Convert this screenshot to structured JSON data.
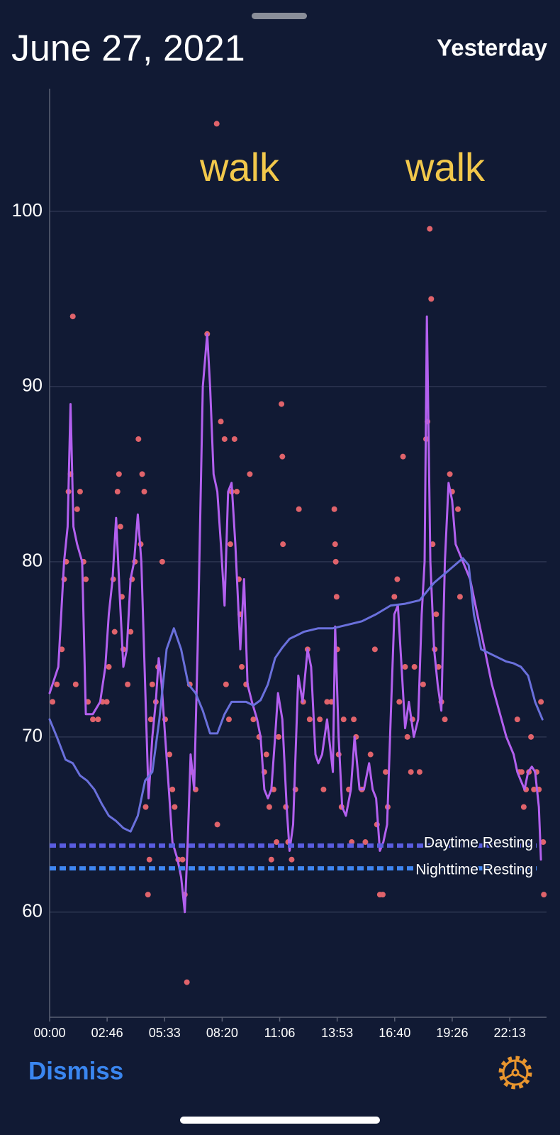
{
  "header": {
    "title": "June 27, 2021",
    "action": "Yesterday"
  },
  "footer": {
    "dismiss": "Dismiss"
  },
  "chart_data": {
    "type": "line",
    "xlim": [
      0,
      24
    ],
    "ylim": [
      54,
      107
    ],
    "xticks": [
      {
        "value": 0,
        "label": "00:00"
      },
      {
        "value": 2.7778,
        "label": "02:46"
      },
      {
        "value": 5.5556,
        "label": "05:33"
      },
      {
        "value": 8.3333,
        "label": "08:20"
      },
      {
        "value": 11.1111,
        "label": "11:06"
      },
      {
        "value": 13.8889,
        "label": "13:53"
      },
      {
        "value": 16.6667,
        "label": "16:40"
      },
      {
        "value": 19.4444,
        "label": "19:26"
      },
      {
        "value": 22.2222,
        "label": "22:13"
      }
    ],
    "yticks": [
      60,
      70,
      80,
      90,
      100
    ],
    "grid": true,
    "annotations": [
      "walk",
      "walk"
    ],
    "reference_lines": [
      {
        "name": "Daytime Resting",
        "value": 63.8,
        "color": "#5a5de0"
      },
      {
        "name": "Nighttime Resting",
        "value": 62.5,
        "color": "#3f86f2"
      }
    ],
    "series": [
      {
        "type": "scatter",
        "color": "#e0636b",
        "x": [
          0.14,
          0.35,
          0.59,
          0.7,
          0.8,
          0.91,
          1.01,
          1.12,
          1.26,
          1.33,
          1.47,
          1.64,
          1.75,
          1.85,
          2.09,
          2.34,
          2.55,
          2.76,
          2.86,
          3.07,
          3.14,
          3.28,
          3.35,
          3.42,
          3.49,
          3.56,
          3.77,
          3.91,
          3.98,
          4.12,
          4.29,
          4.4,
          4.47,
          4.57,
          4.64,
          4.75,
          4.82,
          4.89,
          4.96,
          5.13,
          5.24,
          5.44,
          5.58,
          5.79,
          5.93,
          6.04,
          6.21,
          6.42,
          6.53,
          6.63,
          6.77,
          6.88,
          7.05,
          7.61,
          8.07,
          8.1,
          8.27,
          8.45,
          8.52,
          8.66,
          8.73,
          8.79,
          8.93,
          9.04,
          9.14,
          9.21,
          9.28,
          9.49,
          9.67,
          9.84,
          10.12,
          10.37,
          10.47,
          10.61,
          10.71,
          10.82,
          10.96,
          11.06,
          11.2,
          11.24,
          11.27,
          11.41,
          11.52,
          11.69,
          11.87,
          12.04,
          12.25,
          12.46,
          12.56,
          13.05,
          13.23,
          13.4,
          13.61,
          13.75,
          13.79,
          13.82,
          13.86,
          13.89,
          13.96,
          14.1,
          14.2,
          14.45,
          14.59,
          14.69,
          14.8,
          15.08,
          15.25,
          15.5,
          15.71,
          15.81,
          15.95,
          16.09,
          16.23,
          16.33,
          16.65,
          16.79,
          16.89,
          17.07,
          17.17,
          17.28,
          17.45,
          17.52,
          17.62,
          17.87,
          18.04,
          18.18,
          18.25,
          18.36,
          18.43,
          18.5,
          18.6,
          18.67,
          18.78,
          18.92,
          19.09,
          19.33,
          19.44,
          19.72,
          19.82,
          22.59,
          22.69,
          22.8,
          22.9,
          23.01,
          23.15,
          23.25,
          23.39,
          23.52,
          23.63,
          23.73,
          23.84,
          23.87
        ],
        "values": [
          72,
          73,
          75,
          79,
          80,
          84,
          85,
          94,
          73,
          83,
          84,
          80,
          79,
          72,
          71,
          71,
          72,
          72,
          74,
          79,
          76,
          84,
          85,
          82,
          78,
          75,
          73,
          76,
          79,
          80,
          87,
          81,
          85,
          84,
          66,
          61,
          63,
          71,
          73,
          72,
          74,
          80,
          71,
          69,
          67,
          66,
          63,
          63,
          61,
          56,
          73,
          68,
          67,
          93,
          105,
          65,
          88,
          87,
          73,
          71,
          81,
          84,
          87,
          84,
          79,
          77,
          74,
          73,
          85,
          71,
          70,
          68,
          69,
          66,
          63,
          67,
          64,
          70,
          89,
          86,
          81,
          66,
          64,
          63,
          67,
          83,
          72,
          75,
          71,
          71,
          67,
          72,
          72,
          83,
          81,
          80,
          78,
          75,
          69,
          66,
          71,
          67,
          64,
          71,
          70,
          67,
          64,
          69,
          75,
          65,
          61,
          61,
          68,
          66,
          78,
          79,
          72,
          86,
          74,
          70,
          68,
          71,
          74,
          68,
          73,
          87,
          88,
          99,
          95,
          81,
          75,
          77,
          74,
          72,
          71,
          85,
          84,
          83,
          78,
          71,
          68,
          68,
          66,
          67,
          68,
          70,
          67,
          68,
          67,
          72,
          64,
          61
        ]
      },
      {
        "type": "line",
        "color": "#b360ef",
        "x": [
          0,
          0.42,
          0.7,
          0.87,
          1.01,
          1.15,
          1.33,
          1.57,
          1.75,
          2.09,
          2.44,
          2.69,
          2.86,
          3.04,
          3.21,
          3.39,
          3.56,
          3.73,
          3.91,
          4.08,
          4.26,
          4.43,
          4.61,
          4.78,
          4.96,
          5.13,
          5.27,
          5.41,
          5.58,
          5.76,
          5.93,
          6.18,
          6.35,
          6.53,
          6.67,
          6.81,
          6.98,
          7.15,
          7.4,
          7.61,
          7.75,
          7.92,
          8.1,
          8.27,
          8.45,
          8.62,
          8.79,
          8.97,
          9.21,
          9.39,
          9.56,
          9.77,
          10.02,
          10.19,
          10.37,
          10.54,
          10.71,
          10.89,
          11.03,
          11.24,
          11.45,
          11.59,
          11.76,
          12.01,
          12.22,
          12.46,
          12.63,
          12.84,
          12.98,
          13.16,
          13.4,
          13.68,
          13.79,
          13.96,
          14.13,
          14.31,
          14.55,
          14.73,
          14.97,
          15.18,
          15.43,
          15.6,
          15.77,
          15.95,
          16.12,
          16.3,
          16.47,
          16.65,
          16.82,
          17.0,
          17.17,
          17.35,
          17.59,
          17.8,
          17.97,
          18.11,
          18.22,
          18.39,
          18.57,
          18.74,
          18.92,
          19.09,
          19.27,
          19.44,
          19.61,
          19.96,
          20.31,
          20.66,
          21.01,
          21.36,
          21.71,
          22.06,
          22.41,
          22.59,
          22.76,
          22.94,
          23.11,
          23.29,
          23.45,
          23.63,
          23.73
        ],
        "values": [
          72.5,
          74,
          80,
          82,
          89,
          82,
          81,
          80,
          71.3,
          71.3,
          72,
          74,
          77,
          79,
          82.5,
          78,
          74,
          75,
          79,
          80,
          82.7,
          80,
          73,
          66.5,
          70,
          72,
          74.5,
          73,
          70,
          67,
          64,
          63,
          62,
          60,
          64,
          69,
          67,
          75,
          90,
          93,
          90,
          85,
          84,
          81,
          77.5,
          84,
          84.5,
          81,
          75,
          79,
          73,
          72,
          71,
          70,
          67,
          66.5,
          67,
          70,
          72.5,
          71,
          66,
          63.5,
          65,
          73.5,
          72,
          75,
          74,
          69,
          68.5,
          69,
          71,
          68,
          76.3,
          70,
          66,
          65.5,
          67,
          70,
          67,
          67,
          68.5,
          67,
          66.5,
          63.5,
          64,
          65,
          71,
          77,
          77.5,
          74,
          70.5,
          72,
          70,
          71,
          77,
          80,
          94,
          80,
          75,
          73,
          71.5,
          80,
          84.5,
          83.5,
          81,
          80,
          79,
          77,
          75,
          73,
          71.5,
          70,
          69,
          68,
          67.5,
          67,
          68,
          68.3,
          68,
          66,
          63
        ]
      },
      {
        "type": "line",
        "color": "#6a70dc",
        "x": [
          0,
          0.35,
          0.77,
          1.12,
          1.47,
          1.81,
          2.16,
          2.51,
          2.86,
          3.21,
          3.56,
          3.91,
          4.26,
          4.61,
          4.96,
          5.3,
          5.65,
          6.0,
          6.35,
          6.7,
          7.05,
          7.4,
          7.75,
          8.1,
          8.45,
          8.79,
          9.14,
          9.49,
          9.84,
          10.19,
          10.54,
          10.89,
          11.24,
          11.59,
          11.94,
          12.28,
          12.98,
          13.68,
          14.38,
          15.08,
          15.77,
          16.47,
          17.17,
          17.87,
          18.57,
          19.27,
          19.96,
          20.24,
          20.49,
          20.84,
          21.36,
          22.06,
          22.41,
          22.76,
          23.11,
          23.45,
          23.8
        ],
        "values": [
          71,
          70,
          68.7,
          68.5,
          67.8,
          67.5,
          67,
          66.2,
          65.5,
          65.2,
          64.8,
          64.6,
          65.5,
          67.5,
          68,
          71,
          75,
          76.2,
          75,
          73,
          72.5,
          71.5,
          70.2,
          70.2,
          71.3,
          72,
          72,
          72,
          71.8,
          72.1,
          73,
          74.5,
          75.1,
          75.6,
          75.8,
          76,
          76.2,
          76.2,
          76.4,
          76.6,
          77,
          77.5,
          77.6,
          77.8,
          78.8,
          79.5,
          80.2,
          79.8,
          77,
          75,
          74.7,
          74.3,
          74.2,
          74,
          73.5,
          72,
          71
        ]
      }
    ]
  }
}
